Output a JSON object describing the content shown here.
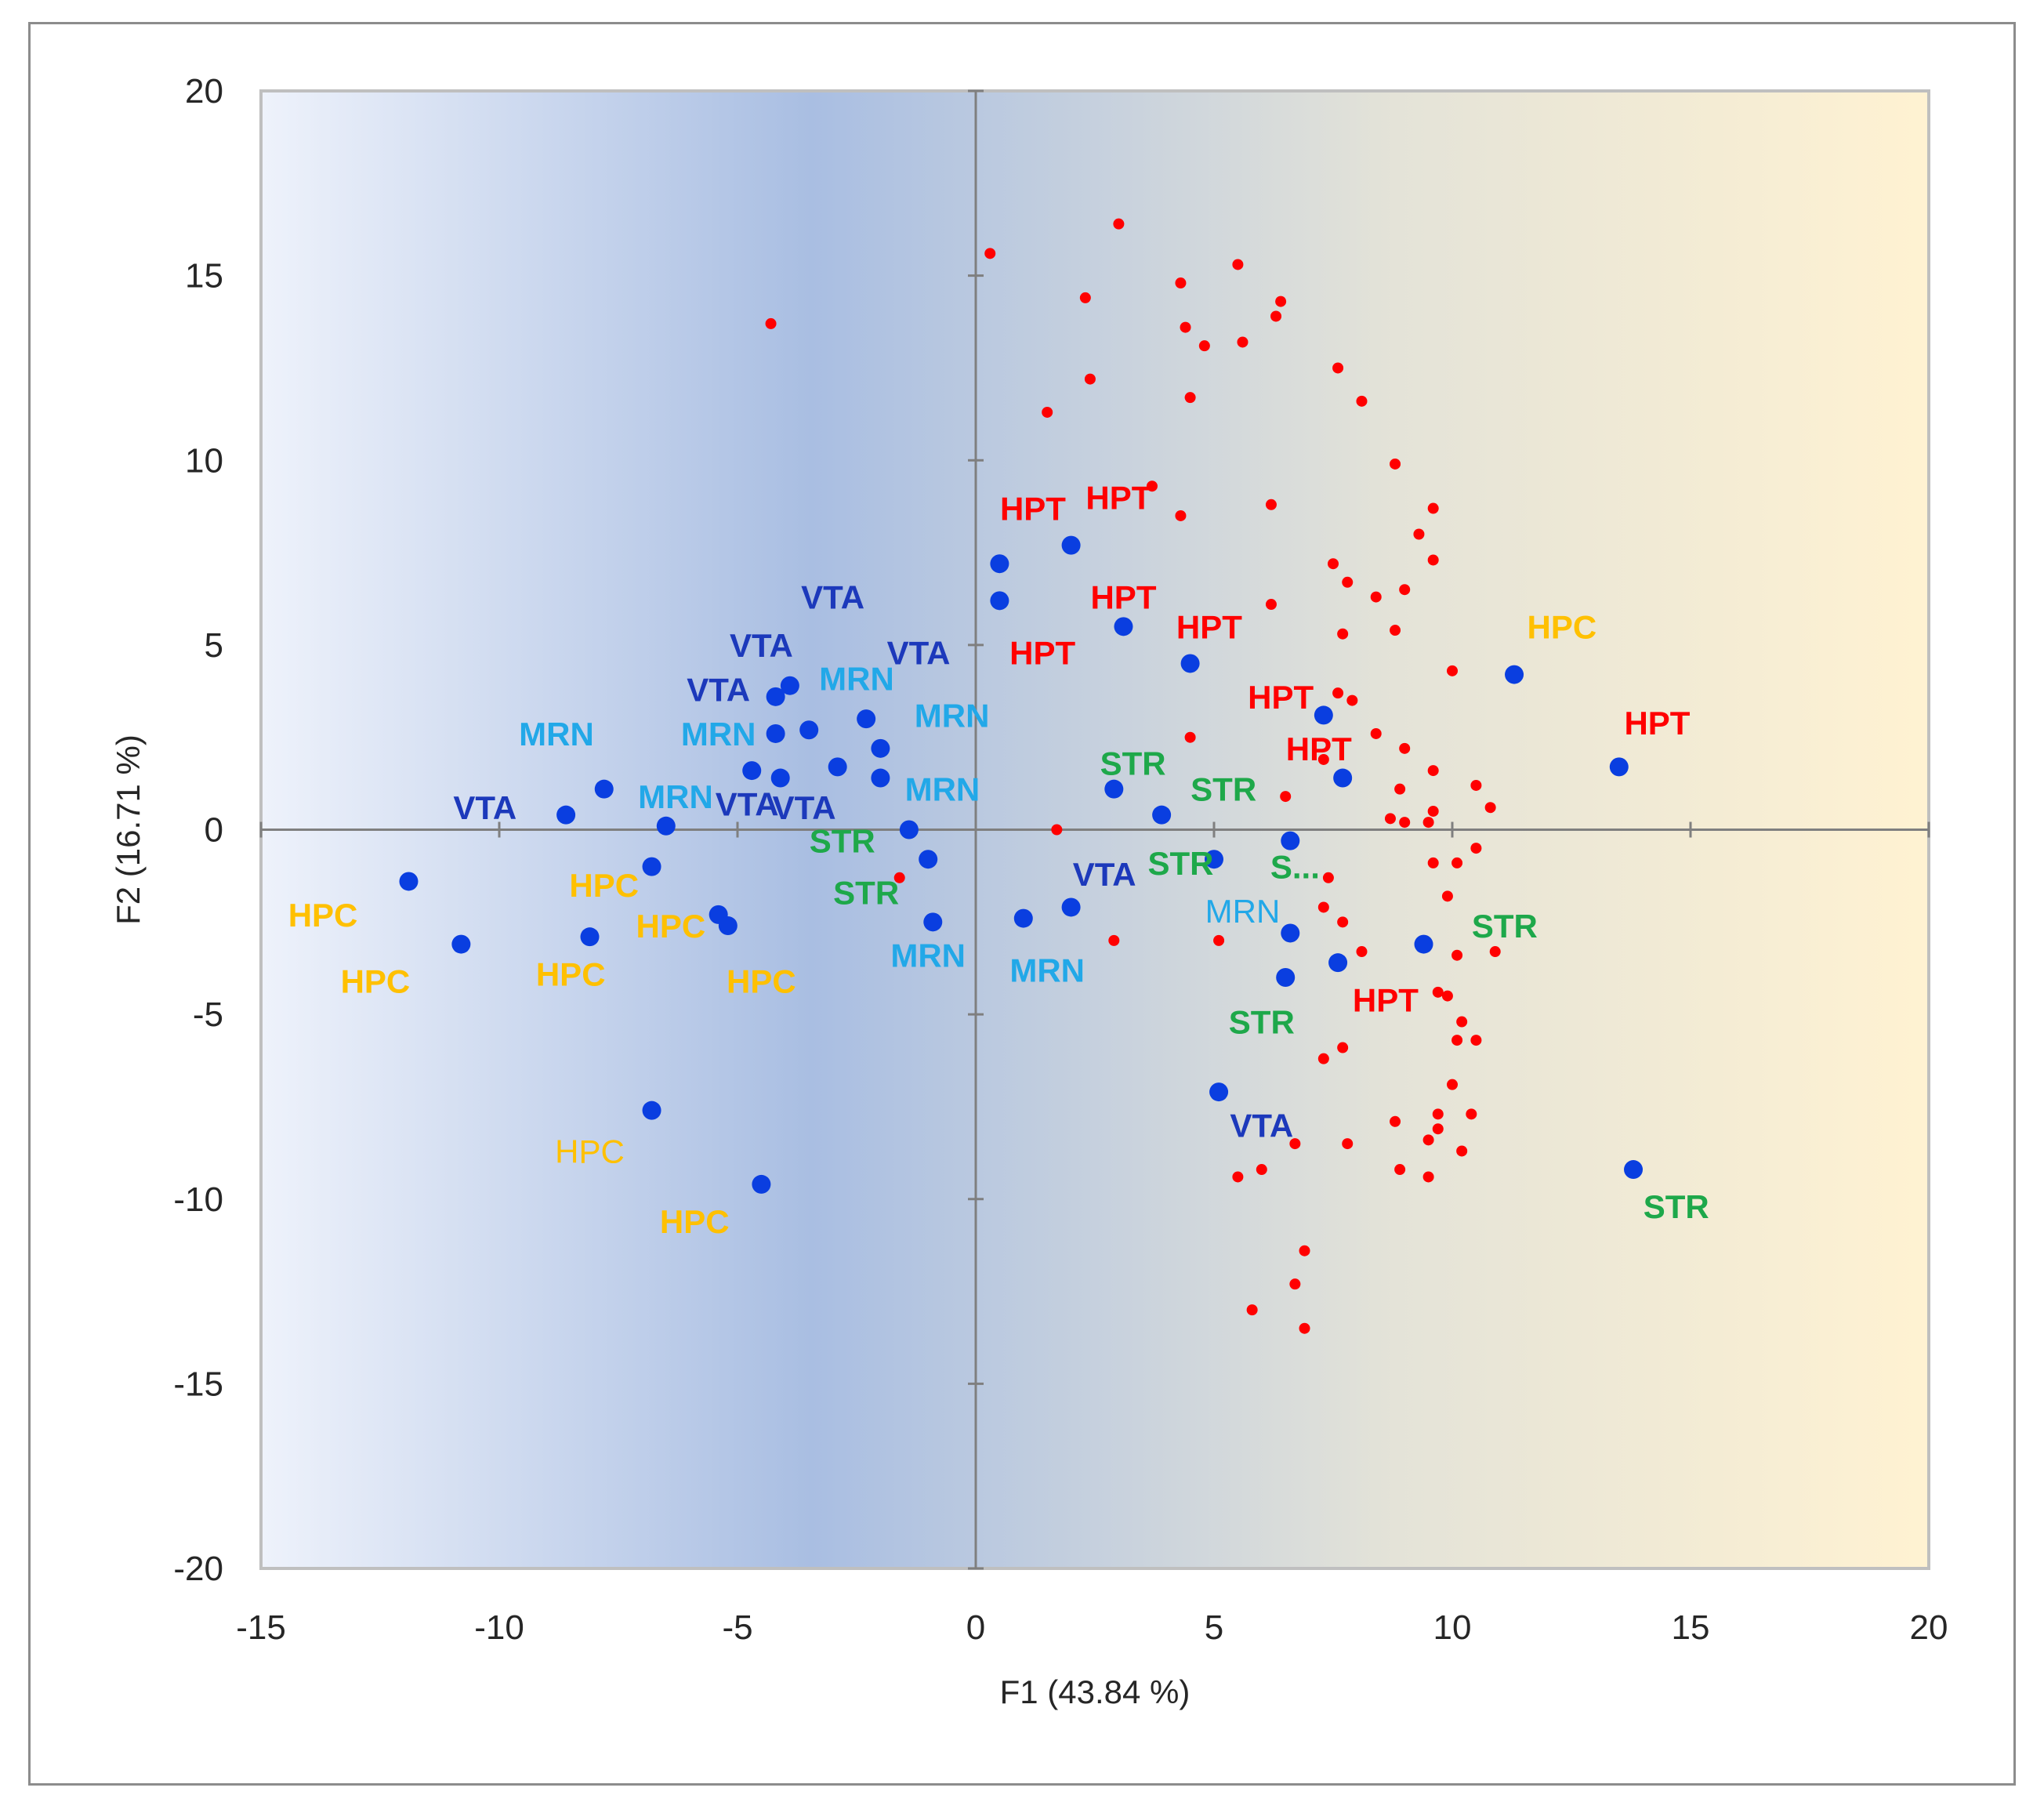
{
  "chart_data": {
    "type": "scatter",
    "title": "",
    "xlabel": "F1 (43.84 %)",
    "ylabel": "F2 (16.71 %)",
    "xlim": [
      -15,
      20
    ],
    "ylim": [
      -20,
      20
    ],
    "xticks": [
      "-15",
      "-10",
      "-5",
      "0",
      "5",
      "10",
      "15",
      "20"
    ],
    "yticks": [
      "20",
      "15",
      "10",
      "5",
      "0",
      "-5",
      "-10",
      "-15",
      "-20"
    ],
    "colors": {
      "observations": "#0a3ee0",
      "variables": "#ff0000",
      "HPC": "#ffc000",
      "HPT": "#ff0000",
      "VTA": "#1c39bb",
      "MRN": "#22a8e8",
      "STR": "#1ea84a"
    },
    "observations": [
      {
        "x": 0.5,
        "y": 7.2
      },
      {
        "x": 0.5,
        "y": 6.2
      },
      {
        "x": 2.0,
        "y": 7.7
      },
      {
        "x": 3.1,
        "y": 5.5
      },
      {
        "x": 4.5,
        "y": 4.5
      },
      {
        "x": 7.3,
        "y": 3.1
      },
      {
        "x": 7.7,
        "y": 1.4
      },
      {
        "x": 11.3,
        "y": 4.2
      },
      {
        "x": 13.5,
        "y": 1.7
      },
      {
        "x": 13.8,
        "y": -9.2
      },
      {
        "x": 2.9,
        "y": 1.1
      },
      {
        "x": 3.9,
        "y": 0.4
      },
      {
        "x": 6.6,
        "y": -0.3
      },
      {
        "x": 5.0,
        "y": -0.8
      },
      {
        "x": 2.0,
        "y": -2.1
      },
      {
        "x": 1.0,
        "y": -2.4
      },
      {
        "x": 6.6,
        "y": -2.8
      },
      {
        "x": 6.5,
        "y": -4.0
      },
      {
        "x": 7.6,
        "y": -3.6
      },
      {
        "x": 9.4,
        "y": -3.1
      },
      {
        "x": 5.1,
        "y": -7.1
      },
      {
        "x": -0.9,
        "y": -2.5
      },
      {
        "x": -1.0,
        "y": -0.8
      },
      {
        "x": -1.4,
        "y": 0.0
      },
      {
        "x": -2.0,
        "y": 1.4
      },
      {
        "x": -2.0,
        "y": 2.2
      },
      {
        "x": -2.3,
        "y": 3.0
      },
      {
        "x": -2.9,
        "y": 1.7
      },
      {
        "x": -3.5,
        "y": 2.7
      },
      {
        "x": -3.9,
        "y": 3.9
      },
      {
        "x": -4.2,
        "y": 3.6
      },
      {
        "x": -4.2,
        "y": 2.6
      },
      {
        "x": -4.1,
        "y": 1.4
      },
      {
        "x": -4.7,
        "y": 1.6
      },
      {
        "x": -6.5,
        "y": 0.1
      },
      {
        "x": -7.8,
        "y": 1.1
      },
      {
        "x": -8.6,
        "y": 0.4
      },
      {
        "x": -6.8,
        "y": -1.0
      },
      {
        "x": -5.4,
        "y": -2.3
      },
      {
        "x": -5.2,
        "y": -2.6
      },
      {
        "x": -8.1,
        "y": -2.9
      },
      {
        "x": -10.8,
        "y": -3.1
      },
      {
        "x": -11.9,
        "y": -1.4
      },
      {
        "x": -6.8,
        "y": -7.6
      },
      {
        "x": -4.5,
        "y": -9.6
      }
    ],
    "variables": [
      {
        "x": 0.3,
        "y": 15.6
      },
      {
        "x": 3.0,
        "y": 16.4
      },
      {
        "x": -4.3,
        "y": 13.7
      },
      {
        "x": 2.3,
        "y": 14.4
      },
      {
        "x": 4.3,
        "y": 14.8
      },
      {
        "x": 5.5,
        "y": 15.3
      },
      {
        "x": 6.4,
        "y": 14.3
      },
      {
        "x": 6.3,
        "y": 13.9
      },
      {
        "x": 4.4,
        "y": 13.6
      },
      {
        "x": 4.8,
        "y": 13.1
      },
      {
        "x": 5.6,
        "y": 13.2
      },
      {
        "x": 2.4,
        "y": 12.2
      },
      {
        "x": 4.5,
        "y": 11.7
      },
      {
        "x": 1.5,
        "y": 11.3
      },
      {
        "x": 7.6,
        "y": 12.5
      },
      {
        "x": 8.1,
        "y": 11.6
      },
      {
        "x": 3.7,
        "y": 9.3
      },
      {
        "x": 4.3,
        "y": 8.5
      },
      {
        "x": 6.2,
        "y": 8.8
      },
      {
        "x": 8.8,
        "y": 9.9
      },
      {
        "x": 9.6,
        "y": 8.7
      },
      {
        "x": 9.3,
        "y": 8.0
      },
      {
        "x": 9.6,
        "y": 7.3
      },
      {
        "x": 7.5,
        "y": 7.2
      },
      {
        "x": 7.8,
        "y": 6.7
      },
      {
        "x": 8.4,
        "y": 6.3
      },
      {
        "x": 9.0,
        "y": 6.5
      },
      {
        "x": 6.2,
        "y": 6.1
      },
      {
        "x": 7.7,
        "y": 5.3
      },
      {
        "x": 8.8,
        "y": 5.4
      },
      {
        "x": 10.0,
        "y": 4.3
      },
      {
        "x": 7.6,
        "y": 3.7
      },
      {
        "x": 7.9,
        "y": 3.5
      },
      {
        "x": 8.4,
        "y": 2.6
      },
      {
        "x": 9.0,
        "y": 2.2
      },
      {
        "x": 4.5,
        "y": 2.5
      },
      {
        "x": 7.3,
        "y": 1.9
      },
      {
        "x": 9.6,
        "y": 1.6
      },
      {
        "x": 6.5,
        "y": 0.9
      },
      {
        "x": 8.9,
        "y": 1.1
      },
      {
        "x": 10.5,
        "y": 1.2
      },
      {
        "x": 10.8,
        "y": 0.6
      },
      {
        "x": 8.7,
        "y": 0.3
      },
      {
        "x": 9.0,
        "y": 0.2
      },
      {
        "x": 9.5,
        "y": 0.2
      },
      {
        "x": 9.6,
        "y": 0.5
      },
      {
        "x": 1.7,
        "y": 0.0
      },
      {
        "x": 10.5,
        "y": -0.5
      },
      {
        "x": 9.6,
        "y": -0.9
      },
      {
        "x": 10.1,
        "y": -0.9
      },
      {
        "x": 7.4,
        "y": -1.3
      },
      {
        "x": 7.3,
        "y": -2.1
      },
      {
        "x": 9.9,
        "y": -1.8
      },
      {
        "x": 7.7,
        "y": -2.5
      },
      {
        "x": 5.1,
        "y": -3.0
      },
      {
        "x": 2.9,
        "y": -3.0
      },
      {
        "x": 8.1,
        "y": -3.3
      },
      {
        "x": 10.1,
        "y": -3.4
      },
      {
        "x": 10.9,
        "y": -3.3
      },
      {
        "x": 9.7,
        "y": -4.4
      },
      {
        "x": 9.9,
        "y": -4.5
      },
      {
        "x": 10.2,
        "y": -5.2
      },
      {
        "x": 10.1,
        "y": -5.7
      },
      {
        "x": 10.5,
        "y": -5.7
      },
      {
        "x": 7.7,
        "y": -5.9
      },
      {
        "x": 7.3,
        "y": -6.2
      },
      {
        "x": 10.0,
        "y": -6.9
      },
      {
        "x": 8.8,
        "y": -7.9
      },
      {
        "x": 9.7,
        "y": -7.7
      },
      {
        "x": 10.4,
        "y": -7.7
      },
      {
        "x": 9.7,
        "y": -8.1
      },
      {
        "x": 9.5,
        "y": -8.4
      },
      {
        "x": 10.2,
        "y": -8.7
      },
      {
        "x": 6.7,
        "y": -8.5
      },
      {
        "x": 7.8,
        "y": -8.5
      },
      {
        "x": 6.0,
        "y": -9.2
      },
      {
        "x": 5.5,
        "y": -9.4
      },
      {
        "x": 8.9,
        "y": -9.2
      },
      {
        "x": 9.5,
        "y": -9.4
      },
      {
        "x": 6.9,
        "y": -11.4
      },
      {
        "x": 6.7,
        "y": -12.3
      },
      {
        "x": 5.8,
        "y": -13.0
      },
      {
        "x": 6.9,
        "y": -13.5
      },
      {
        "x": -1.6,
        "y": -1.3
      }
    ],
    "labels": [
      {
        "text": "HPT",
        "x": 1.2,
        "y": 8.7,
        "group": "HPT"
      },
      {
        "text": "HPT",
        "x": 3.0,
        "y": 9.0,
        "group": "HPT"
      },
      {
        "text": "HPT",
        "x": 3.1,
        "y": 6.3,
        "group": "HPT"
      },
      {
        "text": "HPT",
        "x": 4.9,
        "y": 5.5,
        "group": "HPT"
      },
      {
        "text": "HPT",
        "x": 1.4,
        "y": 4.8,
        "group": "HPT"
      },
      {
        "text": "HPT",
        "x": 6.4,
        "y": 3.6,
        "group": "HPT"
      },
      {
        "text": "HPT",
        "x": 7.2,
        "y": 2.2,
        "group": "HPT"
      },
      {
        "text": "HPT",
        "x": 14.3,
        "y": 2.9,
        "group": "HPT"
      },
      {
        "text": "HPT",
        "x": 8.6,
        "y": -4.6,
        "group": "HPT"
      },
      {
        "text": "HPC",
        "x": 12.3,
        "y": 5.5,
        "group": "HPC"
      },
      {
        "text": "HPC",
        "x": -13.7,
        "y": -2.3,
        "group": "HPC"
      },
      {
        "text": "HPC",
        "x": -12.6,
        "y": -4.1,
        "group": "HPC"
      },
      {
        "text": "HPC",
        "x": -7.8,
        "y": -1.5,
        "group": "HPC"
      },
      {
        "text": "HPC",
        "x": -8.5,
        "y": -3.9,
        "group": "HPC"
      },
      {
        "text": "HPC",
        "x": -6.4,
        "y": -2.6,
        "group": "HPC"
      },
      {
        "text": "HPC",
        "x": -4.5,
        "y": -4.1,
        "group": "HPC"
      },
      {
        "text": "HPC",
        "x": -8.1,
        "y": -8.7,
        "group": "HPC",
        "light": true
      },
      {
        "text": "HPC",
        "x": -5.9,
        "y": -10.6,
        "group": "HPC"
      },
      {
        "text": "VTA",
        "x": -3.0,
        "y": 6.3,
        "group": "VTA"
      },
      {
        "text": "VTA",
        "x": -4.5,
        "y": 5.0,
        "group": "VTA"
      },
      {
        "text": "VTA",
        "x": -1.2,
        "y": 4.8,
        "group": "VTA"
      },
      {
        "text": "VTA",
        "x": -5.4,
        "y": 3.8,
        "group": "VTA"
      },
      {
        "text": "VTA",
        "x": -10.3,
        "y": 0.6,
        "group": "VTA"
      },
      {
        "text": "VTA",
        "x": -4.8,
        "y": 0.7,
        "group": "VTA"
      },
      {
        "text": "VTA",
        "x": -3.6,
        "y": 0.6,
        "group": "VTA"
      },
      {
        "text": "VTA",
        "x": 2.7,
        "y": -1.2,
        "group": "VTA"
      },
      {
        "text": "VTA",
        "x": 6.0,
        "y": -8.0,
        "group": "VTA"
      },
      {
        "text": "MRN",
        "x": -2.5,
        "y": 4.1,
        "group": "MRN"
      },
      {
        "text": "MRN",
        "x": -0.5,
        "y": 3.1,
        "group": "MRN"
      },
      {
        "text": "MRN",
        "x": -8.8,
        "y": 2.6,
        "group": "MRN"
      },
      {
        "text": "MRN",
        "x": -5.4,
        "y": 2.6,
        "group": "MRN"
      },
      {
        "text": "MRN",
        "x": -6.3,
        "y": 0.9,
        "group": "MRN"
      },
      {
        "text": "MRN",
        "x": -0.7,
        "y": 1.1,
        "group": "MRN"
      },
      {
        "text": "MRN",
        "x": -1.0,
        "y": -3.4,
        "group": "MRN"
      },
      {
        "text": "MRN",
        "x": 1.5,
        "y": -3.8,
        "group": "MRN"
      },
      {
        "text": "MRN",
        "x": 5.6,
        "y": -2.2,
        "group": "MRN",
        "light": true
      },
      {
        "text": "STR",
        "x": 3.3,
        "y": 1.8,
        "group": "STR"
      },
      {
        "text": "STR",
        "x": 5.2,
        "y": 1.1,
        "group": "STR"
      },
      {
        "text": "STR",
        "x": -2.8,
        "y": -0.3,
        "group": "STR"
      },
      {
        "text": "STR",
        "x": -2.3,
        "y": -1.7,
        "group": "STR"
      },
      {
        "text": "STR",
        "x": 4.3,
        "y": -0.9,
        "group": "STR"
      },
      {
        "text": "S...",
        "x": 6.7,
        "y": -1.0,
        "group": "STR"
      },
      {
        "text": "STR",
        "x": 11.1,
        "y": -2.6,
        "group": "STR"
      },
      {
        "text": "STR",
        "x": 6.0,
        "y": -5.2,
        "group": "STR"
      },
      {
        "text": "STR",
        "x": 14.7,
        "y": -10.2,
        "group": "STR"
      }
    ]
  }
}
